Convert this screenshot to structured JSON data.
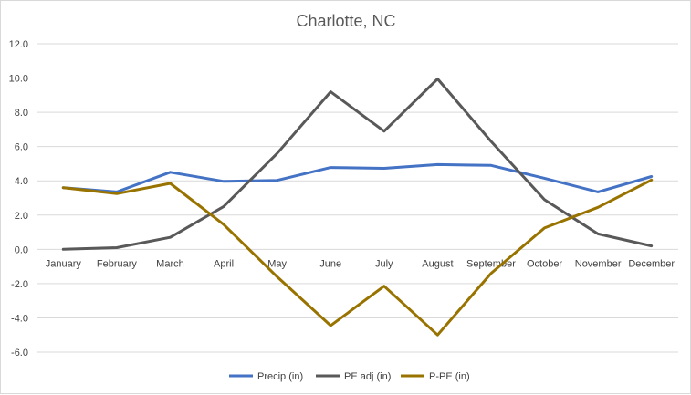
{
  "chart_data": {
    "type": "line",
    "title": "Charlotte, NC",
    "xlabel": "",
    "ylabel": "",
    "categories": [
      "January",
      "February",
      "March",
      "April",
      "May",
      "June",
      "July",
      "August",
      "September",
      "October",
      "November",
      "December"
    ],
    "ylim": [
      -6,
      12
    ],
    "yticks": [
      "-6.0",
      "-4.0",
      "-2.0",
      "0.0",
      "2.0",
      "4.0",
      "6.0",
      "8.0",
      "10.0",
      "12.0"
    ],
    "grid": true,
    "legend_position": "bottom",
    "series": [
      {
        "name": "Precip (in)",
        "color": "#4472C4",
        "values": [
          3.6,
          3.35,
          4.5,
          3.97,
          4.03,
          4.78,
          4.73,
          4.95,
          4.9,
          4.15,
          3.35,
          4.25
        ]
      },
      {
        "name": "PE adj (in)",
        "color": "#595959",
        "values": [
          0.0,
          0.1,
          0.7,
          2.5,
          5.6,
          9.2,
          6.9,
          9.95,
          6.3,
          2.9,
          0.9,
          0.2
        ]
      },
      {
        "name": "P-PE (in)",
        "color": "#997300",
        "values": [
          3.6,
          3.25,
          3.85,
          1.45,
          -1.6,
          -4.45,
          -2.15,
          -5.0,
          -1.4,
          1.25,
          2.45,
          4.05
        ]
      }
    ]
  }
}
